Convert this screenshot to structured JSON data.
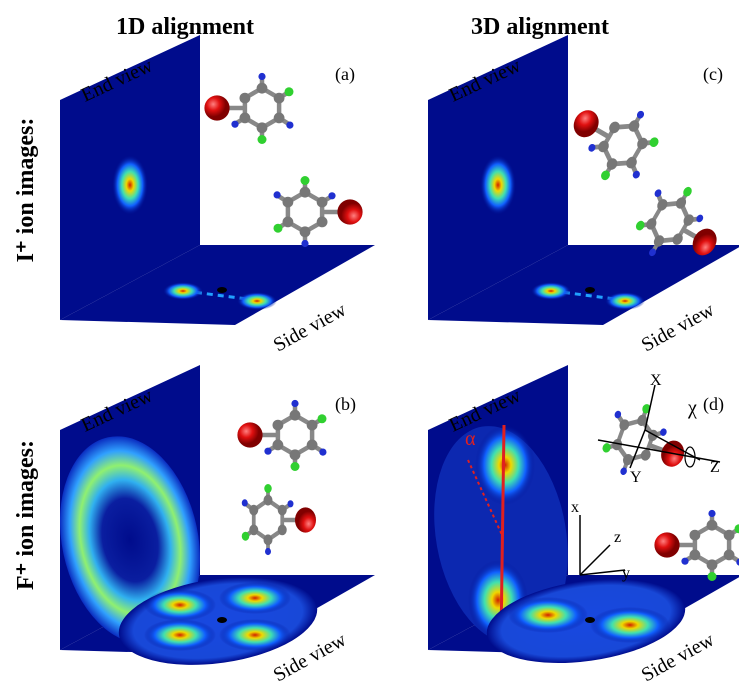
{
  "columns": [
    "1D alignment",
    "3D alignment"
  ],
  "rows": [
    "I⁺ ion images:",
    "F⁺ ion images:"
  ],
  "panels": [
    {
      "label": "(a)",
      "end_view": "End view",
      "side_view": "Side view"
    },
    {
      "label": "(c)",
      "end_view": "End view",
      "side_view": "Side view"
    },
    {
      "label": "(b)",
      "end_view": "End view",
      "side_view": "Side view"
    },
    {
      "label": "(d)",
      "end_view": "End view",
      "side_view": "Side view"
    }
  ],
  "molecule_axes": [
    "X",
    "Y",
    "Z"
  ],
  "lab_axes": [
    "x",
    "y",
    "z"
  ],
  "angles": [
    "α",
    "χ"
  ]
}
